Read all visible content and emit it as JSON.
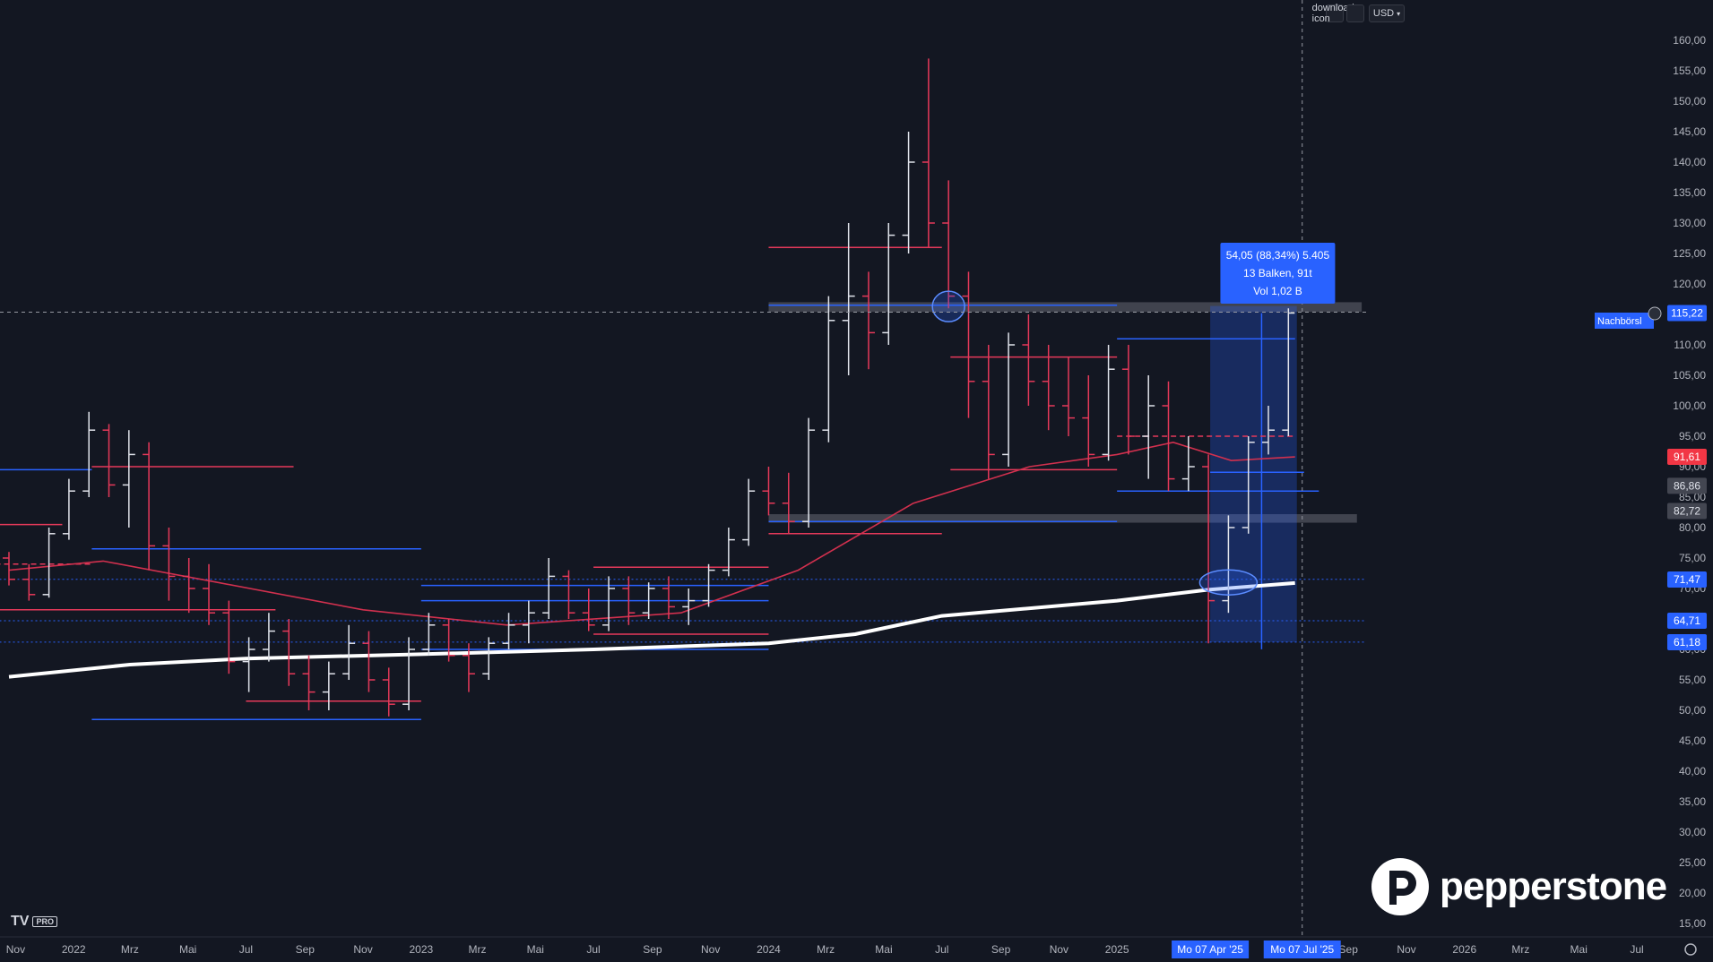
{
  "toolbar": {
    "download_icon": "download-icon",
    "fullscreen_icon": "fullscreen-icon",
    "currency": "USD",
    "currency_chevron": "chevron-down-icon"
  },
  "branding": {
    "tv_logo": "TV",
    "tv_pro": "PRO",
    "pepperstone": "pepperstone"
  },
  "measure_box": {
    "line1": "54,05 (88,34%) 5.405",
    "line2": "13 Balken, 91t",
    "line3": "Vol 1,02 B"
  },
  "afterhours_label": "Nachbörsl",
  "colors": {
    "bg": "#131722",
    "bull": "#e0e3eb",
    "bear": "#e6395a",
    "blue": "#2962ff",
    "ma_red": "#d1304e",
    "ma_white": "#ffffff",
    "measure": "#2962ff"
  },
  "chart_data": {
    "type": "candlestick",
    "interval": "weekly",
    "y_axis": {
      "min": 15,
      "max": 160,
      "side": "right",
      "ticks": [
        "160,00",
        "155,00",
        "150,00",
        "145,00",
        "140,00",
        "135,00",
        "130,00",
        "125,00",
        "120,00",
        "115,00",
        "110,00",
        "105,00",
        "100,00",
        "95,00",
        "90,00",
        "85,00",
        "80,00",
        "75,00",
        "70,00",
        "65,00",
        "60,00",
        "55,00",
        "50,00",
        "45,00",
        "40,00",
        "35,00",
        "30,00",
        "25,00",
        "20,00",
        "15,00"
      ],
      "tick_values": [
        160,
        155,
        150,
        145,
        140,
        135,
        130,
        125,
        120,
        115,
        110,
        105,
        100,
        95,
        90,
        85,
        80,
        75,
        70,
        65,
        60,
        55,
        50,
        45,
        40,
        35,
        30,
        25,
        20,
        15
      ]
    },
    "x_axis": {
      "labels": [
        "Nov",
        "2022",
        "Mrz",
        "Mai",
        "Jul",
        "Sep",
        "Nov",
        "2023",
        "Mrz",
        "Mai",
        "Jul",
        "Sep",
        "Nov",
        "2024",
        "Mrz",
        "Mai",
        "Jul",
        "Sep",
        "Nov",
        "2025",
        "Apr",
        "Jul",
        "Sep",
        "Nov",
        "2026",
        "Mrz",
        "Mai",
        "Jul"
      ],
      "label_dates": [
        "2021-11",
        "2022-01",
        "2022-03",
        "2022-05",
        "2022-07",
        "2022-09",
        "2022-11",
        "2023-01",
        "2023-03",
        "2023-05",
        "2023-07",
        "2023-09",
        "2023-11",
        "2024-01",
        "2024-03",
        "2024-05",
        "2024-07",
        "2024-09",
        "2024-11",
        "2025-01",
        "2025-04",
        "2025-07",
        "2025-09",
        "2025-11",
        "2026-01",
        "2026-03",
        "2026-05",
        "2026-07"
      ],
      "highlighted": [
        "Mo 07 Apr '25",
        "Mo 07 Jul '25"
      ]
    },
    "price_labels": [
      {
        "text": "115,22",
        "value": 115.22,
        "color": "#2962ff"
      },
      {
        "text": "91,61",
        "value": 91.61,
        "color": "#f23645"
      },
      {
        "text": "86,86",
        "value": 86.86,
        "color": "#b2b5be"
      },
      {
        "text": "82,72",
        "value": 82.72,
        "color": "#b2b5be"
      },
      {
        "text": "71,47",
        "value": 71.47,
        "color": "#2962ff"
      },
      {
        "text": "64,71",
        "value": 64.71,
        "color": "#2962ff"
      },
      {
        "text": "61,18",
        "value": 61.18,
        "color": "#2962ff"
      }
    ],
    "last_price": 115.22,
    "measurement": {
      "from_date": "2025-04-07",
      "to_date": "2025-07-07",
      "from_price": 61.2,
      "to_price": 115.2,
      "change": "54,05",
      "change_pct": "88,34%",
      "bars": 13,
      "days": 91
    },
    "candles": [
      {
        "date": "2021-10-25",
        "o": 75.0,
        "h": 76.0,
        "l": 70.5,
        "c": 71.5
      },
      {
        "date": "2021-11-15",
        "o": 71.5,
        "h": 74.0,
        "l": 68.0,
        "c": 69.0
      },
      {
        "date": "2021-12-06",
        "o": 69.0,
        "h": 80.0,
        "l": 68.5,
        "c": 79.0
      },
      {
        "date": "2021-12-27",
        "o": 79.0,
        "h": 88.0,
        "l": 78.0,
        "c": 86.0
      },
      {
        "date": "2022-01-17",
        "o": 86.0,
        "h": 99.0,
        "l": 85.0,
        "c": 96.0
      },
      {
        "date": "2022-02-07",
        "o": 96.0,
        "h": 97.0,
        "l": 85.0,
        "c": 87.0
      },
      {
        "date": "2022-02-28",
        "o": 87.0,
        "h": 96.0,
        "l": 80.0,
        "c": 92.0
      },
      {
        "date": "2022-03-21",
        "o": 92.0,
        "h": 94.0,
        "l": 73.0,
        "c": 77.0
      },
      {
        "date": "2022-04-11",
        "o": 77.0,
        "h": 80.0,
        "l": 68.0,
        "c": 72.0
      },
      {
        "date": "2022-05-02",
        "o": 72.0,
        "h": 75.0,
        "l": 66.0,
        "c": 70.0
      },
      {
        "date": "2022-05-23",
        "o": 70.0,
        "h": 74.0,
        "l": 64.0,
        "c": 66.0
      },
      {
        "date": "2022-06-13",
        "o": 66.0,
        "h": 68.0,
        "l": 56.0,
        "c": 58.0
      },
      {
        "date": "2022-07-04",
        "o": 58.0,
        "h": 62.0,
        "l": 53.0,
        "c": 60.0
      },
      {
        "date": "2022-07-25",
        "o": 60.0,
        "h": 66.0,
        "l": 58.0,
        "c": 63.0
      },
      {
        "date": "2022-08-15",
        "o": 63.0,
        "h": 65.0,
        "l": 54.0,
        "c": 56.0
      },
      {
        "date": "2022-09-05",
        "o": 56.0,
        "h": 59.0,
        "l": 50.0,
        "c": 53.0
      },
      {
        "date": "2022-09-26",
        "o": 53.0,
        "h": 58.0,
        "l": 50.0,
        "c": 56.0
      },
      {
        "date": "2022-10-17",
        "o": 56.0,
        "h": 64.0,
        "l": 55.0,
        "c": 61.0
      },
      {
        "date": "2022-11-07",
        "o": 61.0,
        "h": 63.0,
        "l": 53.0,
        "c": 55.0
      },
      {
        "date": "2022-11-28",
        "o": 55.0,
        "h": 57.0,
        "l": 49.0,
        "c": 51.0
      },
      {
        "date": "2022-12-19",
        "o": 51.0,
        "h": 62.0,
        "l": 50.0,
        "c": 60.0
      },
      {
        "date": "2023-01-09",
        "o": 60.0,
        "h": 66.0,
        "l": 59.0,
        "c": 64.0
      },
      {
        "date": "2023-01-30",
        "o": 64.0,
        "h": 65.0,
        "l": 58.0,
        "c": 59.0
      },
      {
        "date": "2023-02-20",
        "o": 59.0,
        "h": 61.0,
        "l": 53.0,
        "c": 56.0
      },
      {
        "date": "2023-03-13",
        "o": 56.0,
        "h": 62.0,
        "l": 55.0,
        "c": 61.0
      },
      {
        "date": "2023-04-03",
        "o": 61.0,
        "h": 66.0,
        "l": 60.0,
        "c": 64.0
      },
      {
        "date": "2023-04-24",
        "o": 64.0,
        "h": 68.0,
        "l": 61.0,
        "c": 66.0
      },
      {
        "date": "2023-05-15",
        "o": 66.0,
        "h": 75.0,
        "l": 65.0,
        "c": 72.0
      },
      {
        "date": "2023-06-05",
        "o": 72.0,
        "h": 73.0,
        "l": 65.0,
        "c": 66.0
      },
      {
        "date": "2023-06-26",
        "o": 66.0,
        "h": 70.0,
        "l": 63.0,
        "c": 64.0
      },
      {
        "date": "2023-07-17",
        "o": 64.0,
        "h": 72.0,
        "l": 63.0,
        "c": 70.0
      },
      {
        "date": "2023-08-07",
        "o": 70.0,
        "h": 72.0,
        "l": 64.0,
        "c": 66.0
      },
      {
        "date": "2023-08-28",
        "o": 66.0,
        "h": 71.0,
        "l": 65.0,
        "c": 70.0
      },
      {
        "date": "2023-09-18",
        "o": 70.0,
        "h": 72.0,
        "l": 65.0,
        "c": 67.0
      },
      {
        "date": "2023-10-09",
        "o": 67.0,
        "h": 70.0,
        "l": 64.0,
        "c": 68.0
      },
      {
        "date": "2023-10-30",
        "o": 68.0,
        "h": 74.0,
        "l": 67.0,
        "c": 73.0
      },
      {
        "date": "2023-11-20",
        "o": 73.0,
        "h": 80.0,
        "l": 72.0,
        "c": 78.0
      },
      {
        "date": "2023-12-11",
        "o": 78.0,
        "h": 88.0,
        "l": 77.0,
        "c": 86.0
      },
      {
        "date": "2024-01-01",
        "o": 86.0,
        "h": 90.0,
        "l": 82.0,
        "c": 84.0
      },
      {
        "date": "2024-01-22",
        "o": 84.0,
        "h": 89.0,
        "l": 79.0,
        "c": 81.0
      },
      {
        "date": "2024-02-12",
        "o": 81.0,
        "h": 98.0,
        "l": 80.0,
        "c": 96.0
      },
      {
        "date": "2024-03-04",
        "o": 96.0,
        "h": 118.0,
        "l": 94.0,
        "c": 114.0
      },
      {
        "date": "2024-03-25",
        "o": 114.0,
        "h": 130.0,
        "l": 105.0,
        "c": 118.0
      },
      {
        "date": "2024-04-15",
        "o": 118.0,
        "h": 122.0,
        "l": 106.0,
        "c": 112.0
      },
      {
        "date": "2024-05-06",
        "o": 112.0,
        "h": 130.0,
        "l": 110.0,
        "c": 128.0
      },
      {
        "date": "2024-05-27",
        "o": 128.0,
        "h": 145.0,
        "l": 125.0,
        "c": 140.0
      },
      {
        "date": "2024-06-17",
        "o": 140.0,
        "h": 157.0,
        "l": 126.0,
        "c": 130.0
      },
      {
        "date": "2024-07-08",
        "o": 130.0,
        "h": 137.0,
        "l": 116.0,
        "c": 118.0
      },
      {
        "date": "2024-07-29",
        "o": 118.0,
        "h": 122.0,
        "l": 98.0,
        "c": 104.0
      },
      {
        "date": "2024-08-19",
        "o": 104.0,
        "h": 110.0,
        "l": 88.0,
        "c": 92.0
      },
      {
        "date": "2024-09-09",
        "o": 92.0,
        "h": 112.0,
        "l": 90.0,
        "c": 110.0
      },
      {
        "date": "2024-09-30",
        "o": 110.0,
        "h": 115.0,
        "l": 100.0,
        "c": 104.0
      },
      {
        "date": "2024-10-21",
        "o": 104.0,
        "h": 110.0,
        "l": 96.0,
        "c": 100.0
      },
      {
        "date": "2024-11-11",
        "o": 100.0,
        "h": 108.0,
        "l": 95.0,
        "c": 98.0
      },
      {
        "date": "2024-12-02",
        "o": 98.0,
        "h": 105.0,
        "l": 90.0,
        "c": 92.0
      },
      {
        "date": "2024-12-23",
        "o": 92.0,
        "h": 110.0,
        "l": 91.0,
        "c": 106.0
      },
      {
        "date": "2025-01-13",
        "o": 106.0,
        "h": 110.0,
        "l": 92.0,
        "c": 95.0
      },
      {
        "date": "2025-02-03",
        "o": 95.0,
        "h": 105.0,
        "l": 88.0,
        "c": 100.0
      },
      {
        "date": "2025-02-24",
        "o": 100.0,
        "h": 104.0,
        "l": 86.0,
        "c": 88.0
      },
      {
        "date": "2025-03-17",
        "o": 88.0,
        "h": 95.0,
        "l": 86.0,
        "c": 90.0
      },
      {
        "date": "2025-04-07",
        "o": 90.0,
        "h": 92.0,
        "l": 61.0,
        "c": 68.0
      },
      {
        "date": "2025-04-28",
        "o": 68.0,
        "h": 82.0,
        "l": 66.0,
        "c": 80.0
      },
      {
        "date": "2025-05-19",
        "o": 80.0,
        "h": 95.0,
        "l": 79.0,
        "c": 94.0
      },
      {
        "date": "2025-06-09",
        "o": 94.0,
        "h": 100.0,
        "l": 92.0,
        "c": 96.0
      },
      {
        "date": "2025-06-30",
        "o": 96.0,
        "h": 116.0,
        "l": 95.0,
        "c": 115.22
      }
    ],
    "moving_averages": [
      {
        "color": "#ffffff",
        "points": [
          {
            "date": "2021-10-25",
            "v": 55.5
          },
          {
            "date": "2022-03-01",
            "v": 57.5
          },
          {
            "date": "2022-07-01",
            "v": 58.5
          },
          {
            "date": "2023-01-01",
            "v": 59.2
          },
          {
            "date": "2023-07-01",
            "v": 60.0
          },
          {
            "date": "2024-01-01",
            "v": 61.0
          },
          {
            "date": "2024-04-01",
            "v": 62.5
          },
          {
            "date": "2024-07-01",
            "v": 65.5
          },
          {
            "date": "2025-01-01",
            "v": 68.0
          },
          {
            "date": "2025-04-07",
            "v": 69.8
          },
          {
            "date": "2025-07-07",
            "v": 70.9
          }
        ]
      },
      {
        "color": "#d1304e",
        "points": [
          {
            "date": "2021-10-25",
            "v": 73.0
          },
          {
            "date": "2022-02-01",
            "v": 74.5
          },
          {
            "date": "2022-06-01",
            "v": 71.0
          },
          {
            "date": "2022-11-01",
            "v": 66.5
          },
          {
            "date": "2023-04-01",
            "v": 64.0
          },
          {
            "date": "2023-10-01",
            "v": 66.0
          },
          {
            "date": "2024-02-01",
            "v": 73.0
          },
          {
            "date": "2024-06-01",
            "v": 84.0
          },
          {
            "date": "2024-10-01",
            "v": 90.0
          },
          {
            "date": "2025-01-01",
            "v": 92.0
          },
          {
            "date": "2025-03-01",
            "v": 94.0
          },
          {
            "date": "2025-05-01",
            "v": 91.0
          },
          {
            "date": "2025-07-07",
            "v": 91.61
          }
        ]
      }
    ],
    "horizontal_lines": [
      {
        "color": "#2962ff",
        "value": 89.5,
        "from": "2021-10-01",
        "to": "2022-01-20",
        "style": "solid"
      },
      {
        "color": "#e6395a",
        "value": 90.0,
        "from": "2022-01-20",
        "to": "2022-08-20",
        "style": "solid"
      },
      {
        "color": "#e6395a",
        "value": 80.5,
        "from": "2021-10-01",
        "to": "2021-12-20",
        "style": "solid"
      },
      {
        "color": "#2962ff",
        "value": 76.5,
        "from": "2022-01-20",
        "to": "2023-01-01",
        "style": "solid"
      },
      {
        "color": "#e6395a",
        "value": 74.0,
        "from": "2021-10-01",
        "to": "2022-01-20",
        "style": "dashed"
      },
      {
        "color": "#e6395a",
        "value": 66.5,
        "from": "2021-10-01",
        "to": "2022-08-01",
        "style": "solid"
      },
      {
        "color": "#2962ff",
        "value": 70.5,
        "from": "2023-01-01",
        "to": "2024-01-01",
        "style": "solid"
      },
      {
        "color": "#2962ff",
        "value": 68.0,
        "from": "2023-01-01",
        "to": "2024-01-01",
        "style": "solid"
      },
      {
        "color": "#e6395a",
        "value": 73.5,
        "from": "2023-07-01",
        "to": "2024-01-01",
        "style": "solid"
      },
      {
        "color": "#e6395a",
        "value": 62.5,
        "from": "2023-07-01",
        "to": "2024-01-01",
        "style": "solid"
      },
      {
        "color": "#e6395a",
        "value": 51.5,
        "from": "2022-07-01",
        "to": "2023-01-01",
        "style": "solid"
      },
      {
        "color": "#2962ff",
        "value": 48.5,
        "from": "2022-01-20",
        "to": "2023-01-01",
        "style": "solid"
      },
      {
        "color": "#2962ff",
        "value": 60.0,
        "from": "2023-01-01",
        "to": "2024-01-01",
        "style": "solid"
      },
      {
        "color": "#e6395a",
        "value": 126.0,
        "from": "2024-01-01",
        "to": "2024-07-01",
        "style": "solid"
      },
      {
        "color": "#2962ff",
        "value": 116.5,
        "from": "2024-01-01",
        "to": "2025-01-01",
        "style": "solid"
      },
      {
        "color": "#e6395a",
        "value": 108.0,
        "from": "2024-07-10",
        "to": "2025-01-01",
        "style": "solid"
      },
      {
        "color": "#e6395a",
        "value": 89.5,
        "from": "2024-07-10",
        "to": "2025-01-01",
        "style": "solid"
      },
      {
        "color": "#2962ff",
        "value": 81.0,
        "from": "2024-01-01",
        "to": "2025-01-01",
        "style": "solid"
      },
      {
        "color": "#e6395a",
        "value": 79.0,
        "from": "2024-01-01",
        "to": "2024-07-01",
        "style": "solid"
      },
      {
        "color": "#2962ff",
        "value": 111.0,
        "from": "2025-01-01",
        "to": "2025-07-07",
        "style": "solid"
      },
      {
        "color": "#2962ff",
        "value": 86.0,
        "from": "2025-01-01",
        "to": "2025-08-01",
        "style": "solid"
      },
      {
        "color": "#e6395a",
        "value": 95.0,
        "from": "2025-01-01",
        "to": "2025-07-07",
        "style": "dashed"
      },
      {
        "color": "#2962ff",
        "value": 71.5,
        "from": "2021-10-01",
        "to": "2026-08-01",
        "style": "dotted"
      },
      {
        "color": "#2962ff",
        "value": 64.7,
        "from": "2021-10-01",
        "to": "2026-08-01",
        "style": "dotted"
      },
      {
        "color": "#2962ff",
        "value": 61.2,
        "from": "2021-10-01",
        "to": "2026-08-01",
        "style": "dotted"
      }
    ],
    "zones": [
      {
        "from": "2024-01-01",
        "to": "2025-09-15",
        "low": 115.4,
        "high": 117.0,
        "color": "#787b86"
      },
      {
        "from": "2024-01-01",
        "to": "2025-09-10",
        "low": 80.8,
        "high": 82.2,
        "color": "#787b86"
      }
    ],
    "circles": [
      {
        "date": "2024-07-08",
        "value": 116.3
      },
      {
        "date": "2025-04-28",
        "value": 71.0
      }
    ]
  }
}
